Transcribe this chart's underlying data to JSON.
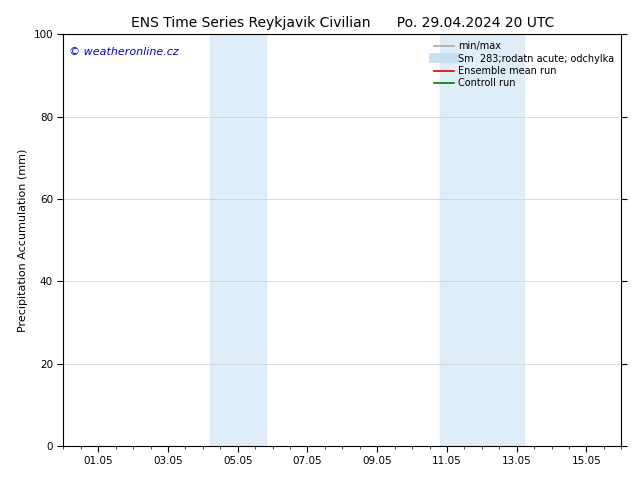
{
  "title_left": "ENS Time Series Reykjavik Civilian",
  "title_right": "Po. 29.04.2024 20 UTC",
  "ylabel": "Precipitation Accumulation (mm)",
  "watermark": "© weatheronline.cz",
  "watermark_color": "#0000cc",
  "ylim": [
    0,
    100
  ],
  "yticks": [
    0,
    20,
    40,
    60,
    80,
    100
  ],
  "xtick_labels": [
    "01.05",
    "03.05",
    "05.05",
    "07.05",
    "09.05",
    "11.05",
    "13.05",
    "15.05"
  ],
  "xtick_positions": [
    1.0,
    3.0,
    5.0,
    7.0,
    9.0,
    11.0,
    13.0,
    15.0
  ],
  "xmin": 0.0,
  "xmax": 16.0,
  "shaded_bands": [
    {
      "xmin": 4.2,
      "xmax": 5.8
    },
    {
      "xmin": 10.8,
      "xmax": 13.2
    }
  ],
  "shade_color": "#daeaf8",
  "shade_alpha": 0.85,
  "background_color": "#ffffff",
  "grid_color": "#cccccc",
  "legend_entries": [
    {
      "label": "min/max",
      "color": "#aaaaaa",
      "lw": 1.2,
      "type": "line"
    },
    {
      "label": "Sm  283;rodatn acute; odchylka",
      "color": "#c8dff0",
      "lw": 7,
      "type": "band"
    },
    {
      "label": "Ensemble mean run",
      "color": "#dd0000",
      "lw": 1.2,
      "type": "line"
    },
    {
      "label": "Controll run",
      "color": "#007700",
      "lw": 1.2,
      "type": "line"
    }
  ],
  "title_fontsize": 10,
  "axis_fontsize": 8,
  "tick_fontsize": 7.5,
  "legend_fontsize": 7,
  "watermark_fontsize": 8
}
